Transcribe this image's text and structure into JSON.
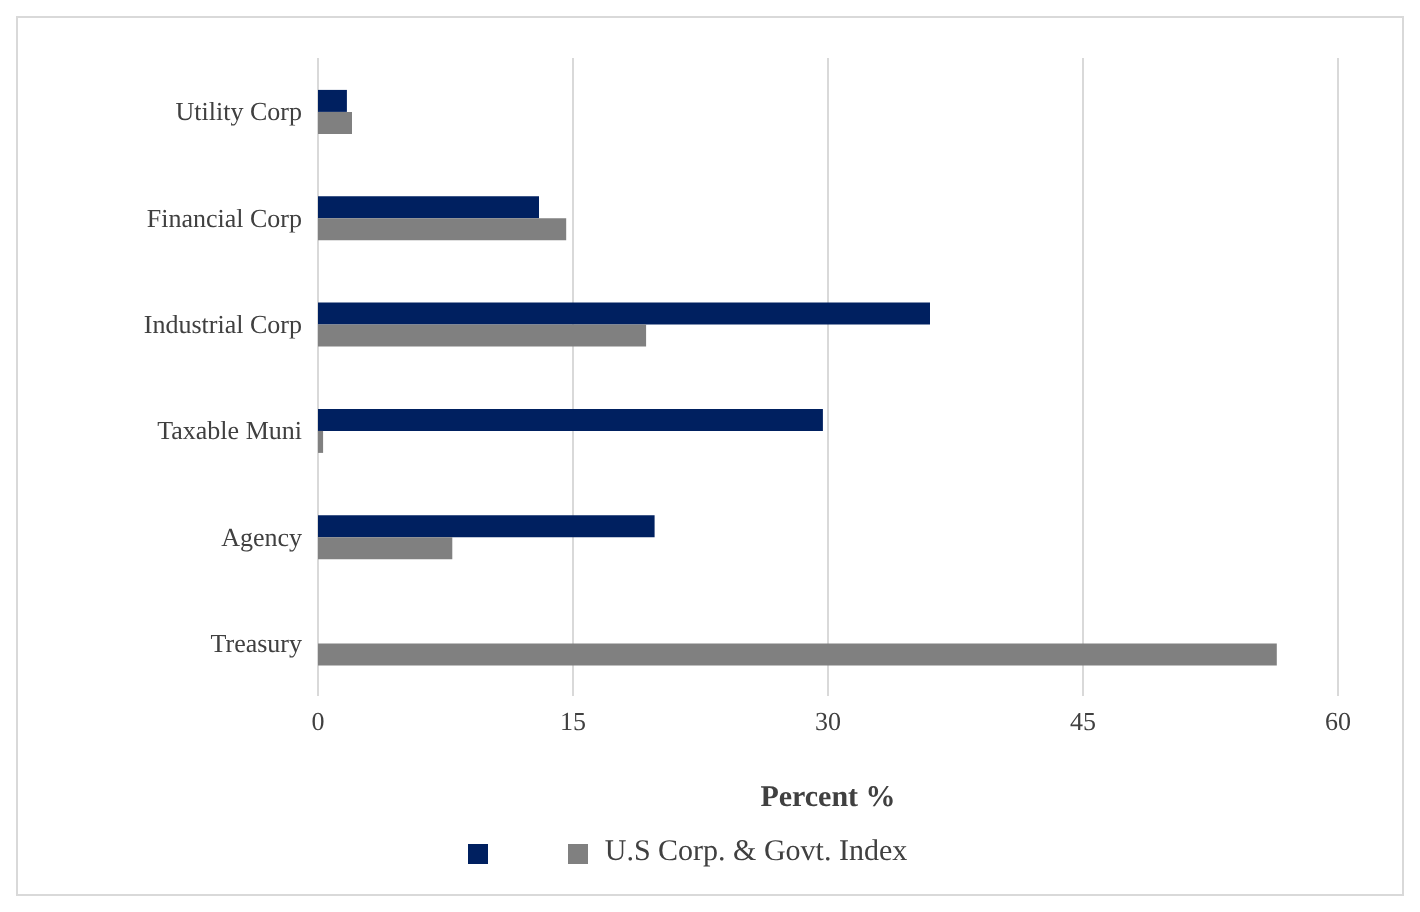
{
  "chart_data": {
    "type": "bar",
    "orientation": "horizontal",
    "categories": [
      "Utility Corp",
      "Financial Corp",
      "Industrial Corp",
      "Taxable Muni",
      "Agency",
      "Treasury"
    ],
    "series": [
      {
        "color": "#002060",
        "values": [
          1.7,
          13.0,
          36.0,
          29.7,
          19.8,
          0
        ]
      },
      {
        "name": "U.S Corp. & Govt. Index",
        "color": "#808080",
        "values": [
          2.0,
          14.6,
          19.3,
          0.3,
          7.9,
          56.4
        ]
      }
    ],
    "xlabel": "Percent %",
    "xlim": [
      0,
      60
    ],
    "xticks": [
      0,
      15,
      30,
      45,
      60
    ],
    "grid": "x",
    "legend": "bottom"
  }
}
